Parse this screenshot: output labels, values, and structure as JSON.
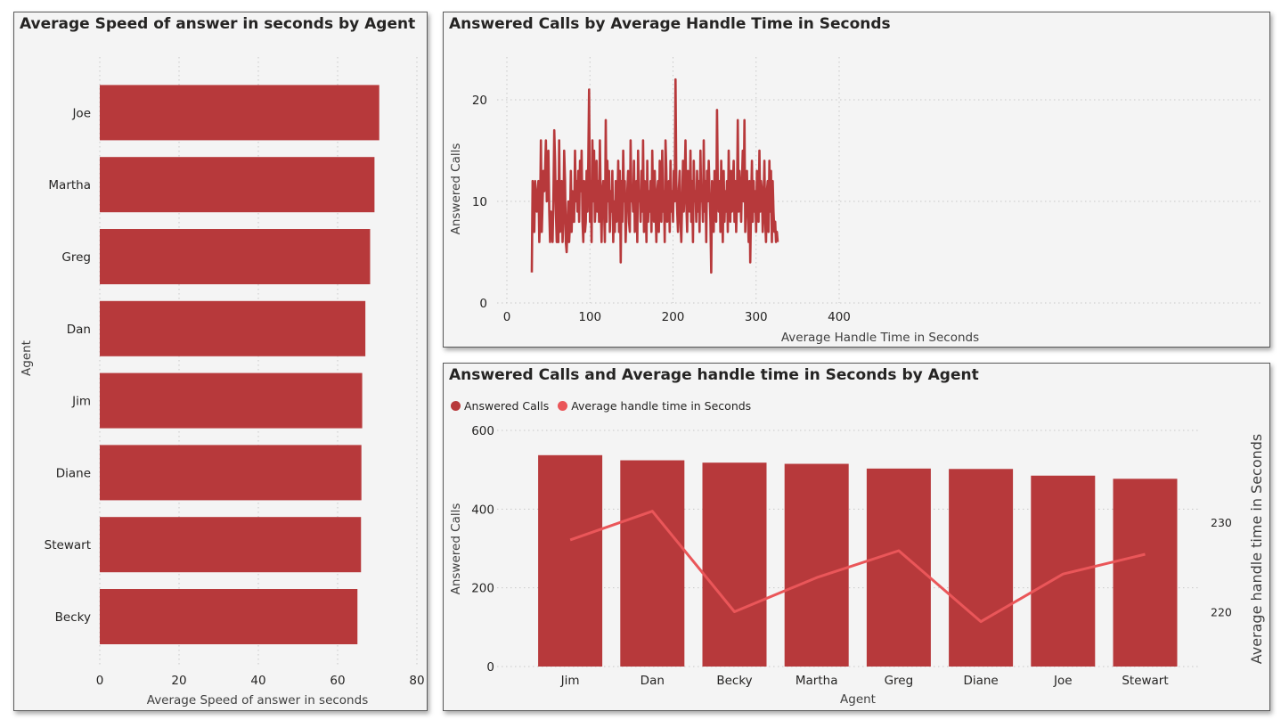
{
  "colors": {
    "bar": "#b7393b",
    "line": "#ea5659",
    "panel_bg": "#f4f4f4"
  },
  "chart_data": [
    {
      "type": "bar",
      "orientation": "horizontal",
      "title": "Average Speed of answer in seconds by Agent",
      "xlabel": "Average Speed of answer in seconds",
      "ylabel": "Agent",
      "xlim": [
        0,
        80
      ],
      "xticks": [
        0,
        20,
        40,
        60,
        80
      ],
      "categories": [
        "Joe",
        "Martha",
        "Greg",
        "Dan",
        "Jim",
        "Diane",
        "Stewart",
        "Becky"
      ],
      "values": [
        70.5,
        69.3,
        68.2,
        67,
        66.2,
        66,
        65.9,
        65
      ]
    },
    {
      "type": "line",
      "title": "Answered Calls by Average Handle Time in Seconds",
      "xlabel": "Average Handle Time in Seconds",
      "ylabel": "Answered Calls",
      "xlim": [
        -5,
        460
      ],
      "ylim": [
        0,
        25
      ],
      "xticks": [
        0,
        100,
        200,
        300,
        400
      ],
      "yticks": [
        0,
        10,
        20
      ],
      "x_start": 30,
      "x_step": 1,
      "values": [
        3,
        12,
        11,
        7,
        12,
        10,
        9,
        11,
        12,
        6,
        9,
        16,
        7,
        10,
        13,
        11,
        13,
        16,
        10,
        12,
        15,
        9,
        6,
        9,
        8,
        6,
        10,
        17,
        14,
        9,
        6,
        12,
        6,
        16,
        7,
        8,
        12,
        6,
        8,
        15,
        12,
        6,
        5,
        8,
        10,
        6,
        8,
        13,
        7,
        11,
        8,
        8,
        15,
        10,
        12,
        9,
        13,
        8,
        14,
        11,
        15,
        8,
        6,
        12,
        7,
        8,
        13,
        9,
        14,
        21,
        8,
        12,
        6,
        16,
        10,
        15,
        8,
        10,
        14,
        9,
        12,
        8,
        16,
        10,
        6,
        11,
        12,
        9,
        6,
        18,
        8,
        14,
        10,
        13,
        7,
        11,
        9,
        13,
        6,
        10,
        7,
        12,
        8,
        9,
        14,
        7,
        13,
        4,
        12,
        8,
        15,
        10,
        12,
        6,
        9,
        11,
        13,
        8,
        7,
        16,
        10,
        11,
        9,
        14,
        7,
        8,
        12,
        6,
        15,
        10,
        11,
        8,
        13,
        9,
        16,
        7,
        12,
        10,
        6,
        14,
        8,
        11,
        9,
        12,
        7,
        15,
        10,
        8,
        13,
        9,
        6,
        11,
        12,
        7,
        14,
        10,
        8,
        15,
        9,
        11,
        6,
        16,
        13,
        8,
        10,
        12,
        7,
        14,
        9,
        11,
        8,
        13,
        10,
        22,
        12,
        9,
        7,
        11,
        13,
        8,
        6,
        10,
        14,
        9,
        12,
        16,
        10,
        7,
        13,
        11,
        9,
        15,
        8,
        12,
        6,
        14,
        10,
        11,
        8,
        13,
        9,
        12,
        7,
        15,
        10,
        11,
        8,
        16,
        9,
        12,
        6,
        13,
        10,
        14,
        11,
        8,
        3,
        12,
        9,
        7,
        13,
        10,
        8,
        19,
        11,
        9,
        12,
        7,
        14,
        10,
        6,
        13,
        8,
        11,
        9,
        12,
        7,
        15,
        10,
        8,
        13,
        9,
        11,
        14,
        8,
        12,
        7,
        10,
        18,
        9,
        13,
        11,
        8,
        12,
        15,
        10,
        18,
        7,
        11,
        13,
        9,
        6,
        12,
        4,
        10,
        14,
        8,
        12,
        9,
        11,
        7,
        13,
        10,
        8,
        15,
        9,
        12,
        11,
        7,
        10,
        14,
        8,
        6,
        11,
        12,
        7,
        14,
        9,
        13,
        6,
        12,
        9,
        7,
        8,
        6,
        7,
        6
      ]
    },
    {
      "type": "bar+line",
      "title": "Answered Calls and Average handle time in Seconds by Agent",
      "xlabel": "Agent",
      "ylabel": "Answered Calls",
      "y2label": "Average handle time in Seconds",
      "categories": [
        "Jim",
        "Dan",
        "Becky",
        "Martha",
        "Greg",
        "Diane",
        "Joe",
        "Stewart"
      ],
      "ylim": [
        0,
        600
      ],
      "yticks": [
        0,
        200,
        400,
        600
      ],
      "y2lim": [
        213.9,
        240.2
      ],
      "y2ticks": [
        220,
        230
      ],
      "series": [
        {
          "name": "Answered Calls",
          "kind": "bar",
          "values": [
            537,
            524,
            518,
            515,
            503,
            502,
            485,
            477
          ]
        },
        {
          "name": "Average handle time in Seconds",
          "kind": "line",
          "axis": "y2",
          "values": [
            228.0,
            231.2,
            220.0,
            223.8,
            226.8,
            218.9,
            224.2,
            226.4
          ]
        }
      ],
      "legend": "top-left"
    }
  ]
}
